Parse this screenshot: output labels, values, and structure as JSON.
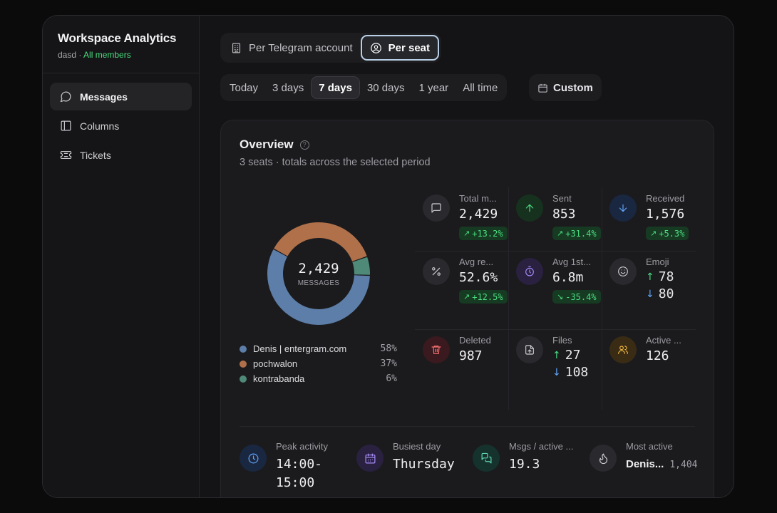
{
  "workspace": {
    "title": "Workspace Analytics",
    "subtitle": "dasd",
    "separator": " · ",
    "scope": "All members"
  },
  "sidebar": {
    "items": [
      {
        "label": "Messages",
        "icon": "chat-bubble-icon"
      },
      {
        "label": "Columns",
        "icon": "columns-icon"
      },
      {
        "label": "Tickets",
        "icon": "ticket-icon"
      }
    ]
  },
  "mode_tabs": [
    {
      "label": "Per Telegram account"
    },
    {
      "label": "Per seat"
    }
  ],
  "active_mode": "Per seat",
  "range_tabs": [
    {
      "label": "Today"
    },
    {
      "label": "3 days"
    },
    {
      "label": "7 days"
    },
    {
      "label": "30 days"
    },
    {
      "label": "1 year"
    },
    {
      "label": "All time"
    }
  ],
  "active_range": "7 days",
  "custom_label": "Custom",
  "overview": {
    "title": "Overview",
    "help": "?",
    "subtitle": "3 seats · totals across the selected period",
    "donut": {
      "total": "2,429",
      "label": "MESSAGES"
    },
    "legend": [
      {
        "name": "Denis | entergram.com",
        "pct": "58%",
        "value": 58,
        "color": "#5d7ea8"
      },
      {
        "name": "pochwalon",
        "pct": "37%",
        "value": 37,
        "color": "#b0714a"
      },
      {
        "name": "kontrabanda",
        "pct": "6%",
        "value": 6,
        "color": "#4f8a78"
      }
    ],
    "stats": {
      "total": {
        "label": "Total m...",
        "value": "2,429",
        "trend": "+13.2%"
      },
      "sent": {
        "label": "Sent",
        "value": "853",
        "trend": "+31.4%"
      },
      "received": {
        "label": "Received",
        "value": "1,576",
        "trend": "+5.3%"
      },
      "avg_response": {
        "label": "Avg re...",
        "value": "52.6%",
        "trend": "+12.5%"
      },
      "avg_first": {
        "label": "Avg 1st...",
        "value": "6.8m",
        "trend": "-35.4%"
      },
      "emoji": {
        "label": "Emoji",
        "up": "78",
        "down": "80"
      },
      "deleted": {
        "label": "Deleted",
        "value": "987"
      },
      "files": {
        "label": "Files",
        "up": "27",
        "down": "108"
      },
      "active": {
        "label": "Active ...",
        "value": "126"
      }
    },
    "highlights": {
      "peak": {
        "label": "Peak activity",
        "value_line1": "14:00-",
        "value_line2": "15:00"
      },
      "busiest": {
        "label": "Busiest day",
        "value": "Thursday"
      },
      "per_active": {
        "label": "Msgs / active ...",
        "value": "19.3"
      },
      "most_active": {
        "label": "Most active",
        "value": "Denis...",
        "count": "1,404"
      }
    }
  },
  "colors": {
    "green": "#4ade80",
    "red": "#f87171",
    "blue": "#60a5fa",
    "yellow": "#f5b942",
    "purple": "#a78bfa",
    "teal": "#5fd4b4"
  }
}
